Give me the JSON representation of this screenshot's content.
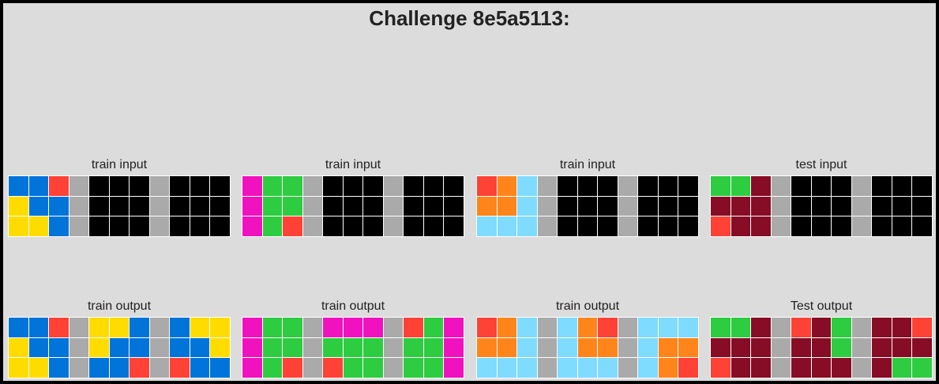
{
  "title": "Challenge 8e5a5113:",
  "palette": {
    "0": "#000000",
    "1": "#0074d9",
    "2": "#ff4136",
    "3": "#2ecc40",
    "4": "#ffdc00",
    "5": "#aaaaaa",
    "6": "#f012be",
    "7": "#ff851b",
    "8": "#7fdbff",
    "9": "#870c25"
  },
  "pairs": [
    {
      "input_label": "train input",
      "output_label": "train output",
      "input": [
        [
          1,
          1,
          2,
          5,
          0,
          0,
          0,
          5,
          0,
          0,
          0
        ],
        [
          4,
          1,
          1,
          5,
          0,
          0,
          0,
          5,
          0,
          0,
          0
        ],
        [
          4,
          4,
          1,
          5,
          0,
          0,
          0,
          5,
          0,
          0,
          0
        ]
      ],
      "output": [
        [
          1,
          1,
          2,
          5,
          4,
          4,
          1,
          5,
          1,
          4,
          4
        ],
        [
          4,
          1,
          1,
          5,
          4,
          1,
          1,
          5,
          1,
          1,
          4
        ],
        [
          4,
          4,
          1,
          5,
          1,
          1,
          2,
          5,
          2,
          1,
          1
        ]
      ]
    },
    {
      "input_label": "train input",
      "output_label": "train output",
      "input": [
        [
          6,
          3,
          3,
          5,
          0,
          0,
          0,
          5,
          0,
          0,
          0
        ],
        [
          6,
          3,
          3,
          5,
          0,
          0,
          0,
          5,
          0,
          0,
          0
        ],
        [
          6,
          3,
          2,
          5,
          0,
          0,
          0,
          5,
          0,
          0,
          0
        ]
      ],
      "output": [
        [
          6,
          3,
          3,
          5,
          6,
          6,
          6,
          5,
          2,
          3,
          6
        ],
        [
          6,
          3,
          3,
          5,
          3,
          3,
          3,
          5,
          3,
          3,
          6
        ],
        [
          6,
          3,
          2,
          5,
          2,
          3,
          3,
          5,
          3,
          3,
          6
        ]
      ]
    },
    {
      "input_label": "train input",
      "output_label": "train output",
      "input": [
        [
          2,
          7,
          8,
          5,
          0,
          0,
          0,
          5,
          0,
          0,
          0
        ],
        [
          7,
          7,
          8,
          5,
          0,
          0,
          0,
          5,
          0,
          0,
          0
        ],
        [
          8,
          8,
          8,
          5,
          0,
          0,
          0,
          5,
          0,
          0,
          0
        ]
      ],
      "output": [
        [
          2,
          7,
          8,
          5,
          8,
          7,
          2,
          5,
          8,
          8,
          8
        ],
        [
          7,
          7,
          8,
          5,
          8,
          7,
          7,
          5,
          8,
          7,
          7
        ],
        [
          8,
          8,
          8,
          5,
          8,
          8,
          8,
          5,
          8,
          7,
          2
        ]
      ]
    },
    {
      "input_label": "test input",
      "output_label": "Test output",
      "input": [
        [
          3,
          3,
          9,
          5,
          0,
          0,
          0,
          5,
          0,
          0,
          0
        ],
        [
          9,
          9,
          9,
          5,
          0,
          0,
          0,
          5,
          0,
          0,
          0
        ],
        [
          2,
          9,
          9,
          5,
          0,
          0,
          0,
          5,
          0,
          0,
          0
        ]
      ],
      "output": [
        [
          3,
          3,
          9,
          5,
          2,
          9,
          3,
          5,
          9,
          9,
          2
        ],
        [
          9,
          9,
          9,
          5,
          9,
          9,
          3,
          5,
          9,
          9,
          9
        ],
        [
          2,
          9,
          9,
          5,
          9,
          9,
          9,
          5,
          9,
          3,
          3
        ]
      ]
    }
  ]
}
